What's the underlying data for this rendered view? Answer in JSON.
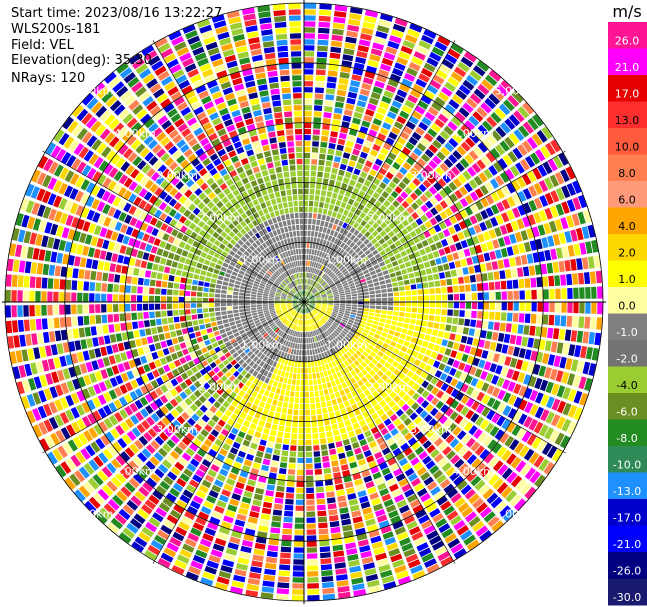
{
  "header": {
    "start_time": "Start time: 2023/08/16 13:22:27",
    "instrument": "WLS200s-181",
    "field": "Field: VEL",
    "elevation": "Elevation(deg): 35.30",
    "nrays": "NRays: 120"
  },
  "chart_data": {
    "type": "heatmap",
    "projection": "polar-ppi",
    "field": "VEL",
    "units": "m/s",
    "n_rays": 120,
    "range_rings_km": [
      1.0,
      2.0,
      3.0,
      4.0,
      5.0
    ],
    "ring_labels": [
      "1.00km",
      "2.00km",
      "3.00km",
      "4.00km",
      "5.00km"
    ],
    "max_range_km": 5.05,
    "colorbar": {
      "unit_label": "m/s",
      "tick_labels": [
        "26.0",
        "21.0",
        "17.0",
        "13.0",
        "10.0",
        "8.0",
        "6.0",
        "4.0",
        "2.0",
        "1.0",
        "0.0",
        "-1.0",
        "-2.0",
        "-4.0",
        "-6.0",
        "-8.0",
        "-10.0",
        "-13.0",
        "-17.0",
        "-21.0",
        "-26.0",
        "-30.0"
      ],
      "colors": [
        "#ff1493",
        "#ff00ff",
        "#e60000",
        "#ff2e2e",
        "#ff5a3c",
        "#ff7f50",
        "#ff9a7a",
        "#ffa500",
        "#ffd700",
        "#ffff00",
        "#ffffa0",
        "#7f7f7f",
        "#737373",
        "#9acd32",
        "#6b8e23",
        "#228b22",
        "#2e8b57",
        "#1e90ff",
        "#0000cd",
        "#0000ff",
        "#000080",
        "#191970"
      ]
    },
    "structure": [
      {
        "range_km": [
          0.0,
          0.2
        ],
        "pattern": "weak-near-zero",
        "color": "#2e8b57"
      },
      {
        "range_km": [
          0.2,
          0.5
        ],
        "pattern": "calm-core",
        "color": "#ffff00"
      },
      {
        "range_km": [
          0.5,
          1.5
        ],
        "pattern": "near-zero",
        "color": "#7f7f7f"
      },
      {
        "range_km": [
          1.5,
          2.6
        ],
        "pattern": "velocity-arcs",
        "color": "#9acd32"
      },
      {
        "range_km": [
          2.6,
          5.05
        ],
        "pattern": "noise",
        "color": "#ff00ff"
      }
    ]
  }
}
